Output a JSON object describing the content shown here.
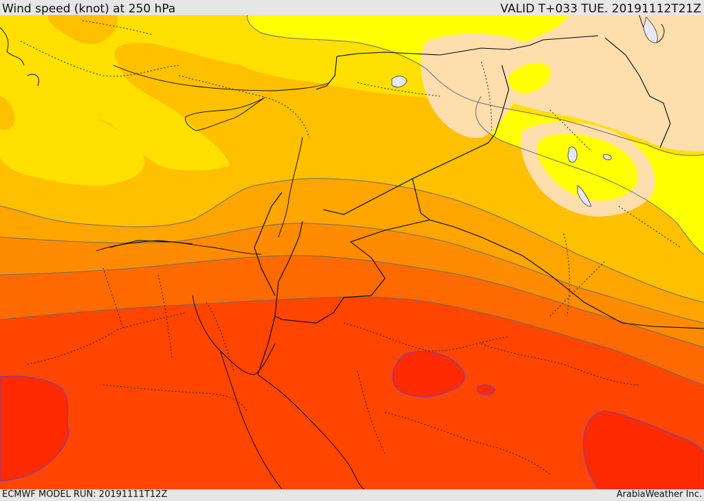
{
  "header": {
    "title": "Wind speed (knot) at 250 hPa",
    "valid_time": "VALID T+033 TUE. 20191112T21Z"
  },
  "footer": {
    "model_run": "ECMWF MODEL RUN: 20191111T12Z",
    "credit": "ArabiaWeather Inc."
  },
  "map": {
    "field": "wind speed at 250 hPa",
    "colors": {
      "band_very_light": "#ffdead",
      "band_yellow_bright": "#ffff00",
      "band_yellow": "#ffe000",
      "band_gold": "#ffc000",
      "band_orange_light": "#ffa500",
      "band_orange": "#ff8c00",
      "band_orange_red": "#ff6a00",
      "band_red_orange": "#ff4500",
      "band_red": "#ff2a00",
      "contour_line": "#6b6b6b",
      "strong_core_edge": "#6a3fc0",
      "border_line": "#000000",
      "water_body": "#e8e8f4"
    }
  }
}
